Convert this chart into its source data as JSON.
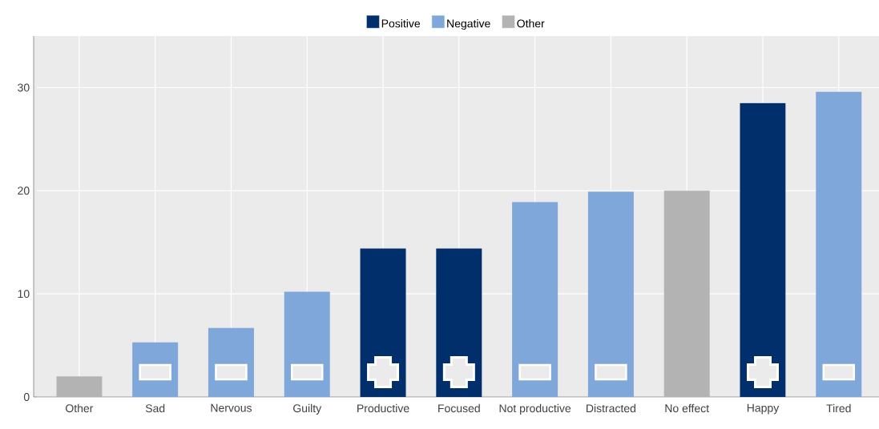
{
  "chart_data": {
    "type": "bar",
    "categories": [
      "Other",
      "Sad",
      "Nervous",
      "Guilty",
      "Productive",
      "Focused",
      "Not productive",
      "Distracted",
      "No effect",
      "Happy",
      "Tired"
    ],
    "series": [
      {
        "name": "Positive",
        "color": "#002f6c",
        "values": [
          null,
          null,
          null,
          null,
          14.4,
          14.4,
          null,
          null,
          null,
          28.5,
          null
        ]
      },
      {
        "name": "Negative",
        "color": "#7fa7d9",
        "values": [
          null,
          5.3,
          6.7,
          10.2,
          null,
          null,
          18.9,
          19.9,
          null,
          null,
          29.6
        ]
      },
      {
        "name": "Other",
        "color": "#b3b3b3",
        "values": [
          2,
          null,
          null,
          null,
          null,
          null,
          null,
          null,
          20,
          null,
          null
        ]
      }
    ],
    "ylim": [
      0,
      35
    ],
    "yticks": [
      0,
      10,
      20,
      30
    ],
    "grid": true,
    "legend": "top"
  }
}
